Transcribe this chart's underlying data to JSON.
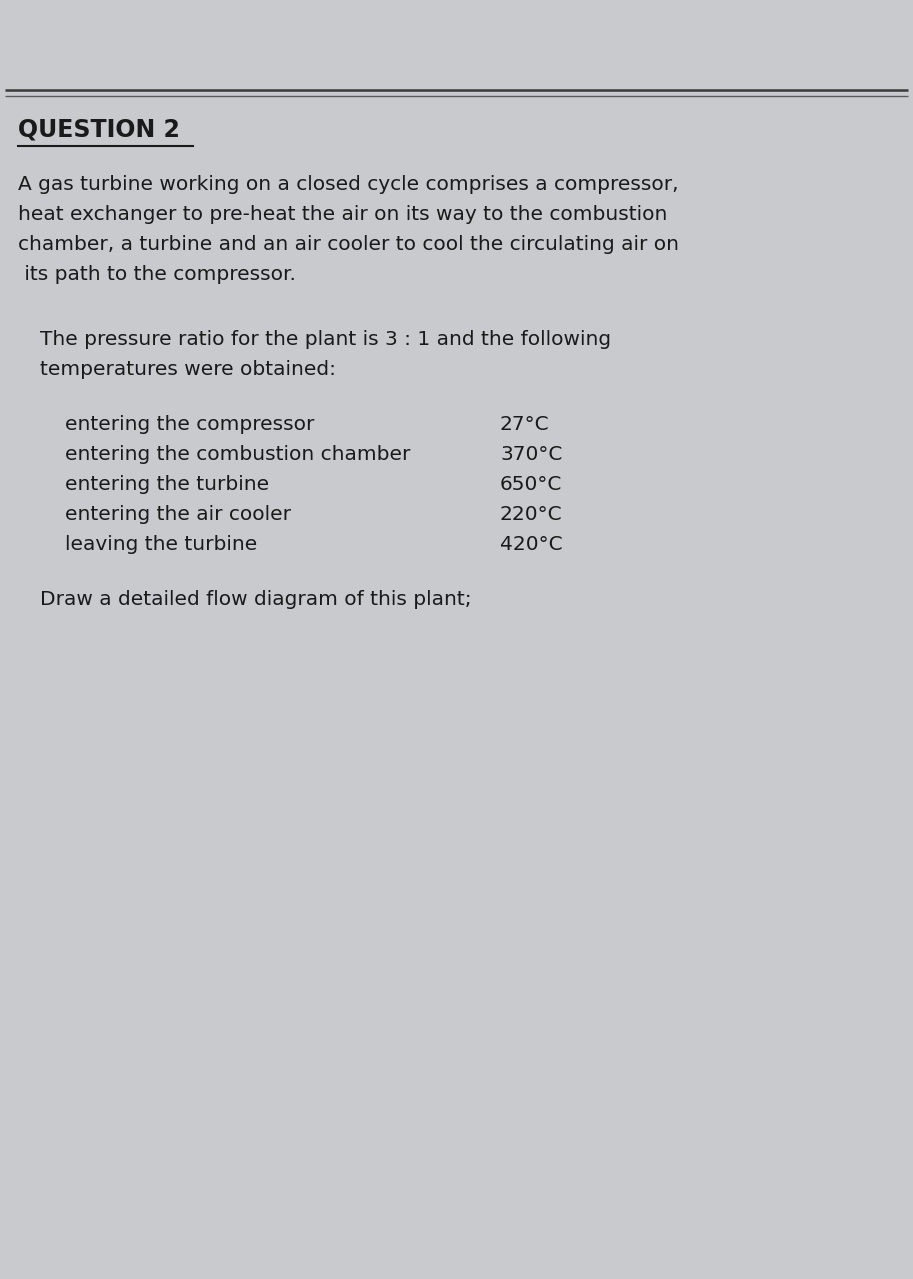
{
  "background_color": "#c8cace",
  "title": "QUESTION 2",
  "title_fontsize": 17,
  "paragraph1_lines": [
    "A gas turbine working on a closed cycle comprises a compressor,",
    "heat exchanger to pre-heat the air on its way to the combustion",
    "chamber, a turbine and an air cooler to cool the circulating air on",
    " its path to the compressor."
  ],
  "paragraph2_lines": [
    "The pressure ratio for the plant is 3 : 1 and the following",
    "temperatures were obtained:"
  ],
  "table_left_col": [
    "entering the compressor",
    "entering the combustion chamber",
    "entering the turbine",
    "entering the air cooler",
    "leaving the turbine"
  ],
  "table_right_col": [
    "27°C",
    "370°C",
    "650°C",
    "220°C",
    "420°C"
  ],
  "paragraph3": "Draw a detailed flow diagram of this plant;",
  "font_color": "#1a1a1a",
  "body_fontsize": 14.5,
  "title_underline_color": "#1a1a1a"
}
